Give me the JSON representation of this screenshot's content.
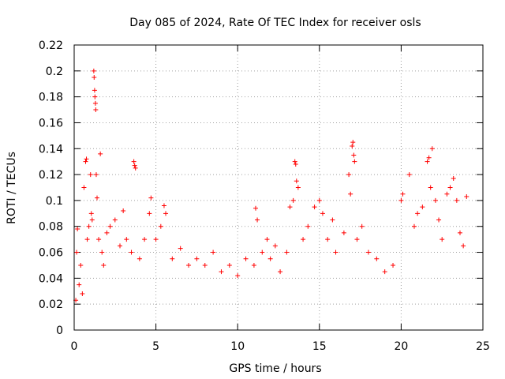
{
  "chart_data": {
    "type": "scatter",
    "title": "Day 085 of 2024, Rate Of TEC Index for receiver osls",
    "xlabel": "GPS time / hours",
    "ylabel": "ROTI / TECUs",
    "xlim": [
      0,
      25
    ],
    "ylim": [
      0,
      0.22
    ],
    "xticks": [
      0,
      5,
      10,
      15,
      20,
      25
    ],
    "xtick_labels": [
      "0",
      "5",
      "10",
      "15",
      "20",
      "25"
    ],
    "yticks": [
      0,
      0.02,
      0.04,
      0.06,
      0.08,
      0.1,
      0.12,
      0.14,
      0.16,
      0.18,
      0.2,
      0.22
    ],
    "ytick_labels": [
      "0",
      "0.02",
      "0.04",
      "0.06",
      "0.08",
      "0.1",
      "0.12",
      "0.14",
      "0.16",
      "0.18",
      "0.2",
      "0.22"
    ],
    "grid": true,
    "marker": "plus",
    "color": "#ff0000",
    "series": [
      {
        "name": "ROTI",
        "points": [
          [
            0.1,
            0.023
          ],
          [
            0.15,
            0.06
          ],
          [
            0.2,
            0.078
          ],
          [
            0.3,
            0.035
          ],
          [
            0.4,
            0.05
          ],
          [
            0.5,
            0.028
          ],
          [
            0.6,
            0.11
          ],
          [
            0.7,
            0.13
          ],
          [
            0.75,
            0.132
          ],
          [
            0.8,
            0.07
          ],
          [
            0.9,
            0.08
          ],
          [
            1.0,
            0.12
          ],
          [
            1.05,
            0.09
          ],
          [
            1.1,
            0.085
          ],
          [
            1.2,
            0.2
          ],
          [
            1.22,
            0.195
          ],
          [
            1.25,
            0.185
          ],
          [
            1.27,
            0.18
          ],
          [
            1.3,
            0.175
          ],
          [
            1.32,
            0.17
          ],
          [
            1.35,
            0.12
          ],
          [
            1.4,
            0.102
          ],
          [
            1.5,
            0.07
          ],
          [
            1.6,
            0.136
          ],
          [
            1.7,
            0.06
          ],
          [
            1.8,
            0.05
          ],
          [
            2.0,
            0.075
          ],
          [
            2.2,
            0.08
          ],
          [
            2.5,
            0.085
          ],
          [
            2.8,
            0.065
          ],
          [
            3.0,
            0.092
          ],
          [
            3.2,
            0.07
          ],
          [
            3.5,
            0.06
          ],
          [
            3.65,
            0.13
          ],
          [
            3.7,
            0.127
          ],
          [
            3.75,
            0.125
          ],
          [
            4.0,
            0.055
          ],
          [
            4.3,
            0.07
          ],
          [
            4.6,
            0.09
          ],
          [
            4.7,
            0.102
          ],
          [
            5.0,
            0.07
          ],
          [
            5.3,
            0.08
          ],
          [
            5.5,
            0.096
          ],
          [
            5.6,
            0.09
          ],
          [
            6.0,
            0.055
          ],
          [
            6.5,
            0.063
          ],
          [
            7.0,
            0.05
          ],
          [
            7.5,
            0.055
          ],
          [
            8.0,
            0.05
          ],
          [
            8.5,
            0.06
          ],
          [
            9.0,
            0.045
          ],
          [
            9.5,
            0.05
          ],
          [
            10.0,
            0.042
          ],
          [
            10.5,
            0.055
          ],
          [
            11.0,
            0.05
          ],
          [
            11.1,
            0.094
          ],
          [
            11.2,
            0.085
          ],
          [
            11.5,
            0.06
          ],
          [
            11.8,
            0.07
          ],
          [
            12.0,
            0.055
          ],
          [
            12.3,
            0.065
          ],
          [
            12.6,
            0.045
          ],
          [
            13.0,
            0.06
          ],
          [
            13.2,
            0.095
          ],
          [
            13.4,
            0.1
          ],
          [
            13.5,
            0.13
          ],
          [
            13.55,
            0.128
          ],
          [
            13.6,
            0.115
          ],
          [
            13.7,
            0.11
          ],
          [
            14.0,
            0.07
          ],
          [
            14.3,
            0.08
          ],
          [
            14.7,
            0.095
          ],
          [
            15.0,
            0.1
          ],
          [
            15.2,
            0.09
          ],
          [
            15.5,
            0.07
          ],
          [
            15.8,
            0.085
          ],
          [
            16.0,
            0.06
          ],
          [
            16.5,
            0.075
          ],
          [
            16.8,
            0.12
          ],
          [
            16.9,
            0.105
          ],
          [
            17.0,
            0.142
          ],
          [
            17.05,
            0.145
          ],
          [
            17.1,
            0.135
          ],
          [
            17.15,
            0.13
          ],
          [
            17.3,
            0.07
          ],
          [
            17.6,
            0.08
          ],
          [
            18.0,
            0.06
          ],
          [
            18.5,
            0.055
          ],
          [
            19.0,
            0.045
          ],
          [
            19.5,
            0.05
          ],
          [
            20.0,
            0.1
          ],
          [
            20.1,
            0.105
          ],
          [
            20.5,
            0.12
          ],
          [
            20.8,
            0.08
          ],
          [
            21.0,
            0.09
          ],
          [
            21.3,
            0.095
          ],
          [
            21.6,
            0.13
          ],
          [
            21.7,
            0.133
          ],
          [
            21.8,
            0.11
          ],
          [
            21.9,
            0.14
          ],
          [
            22.1,
            0.1
          ],
          [
            22.3,
            0.085
          ],
          [
            22.5,
            0.07
          ],
          [
            22.8,
            0.105
          ],
          [
            23.0,
            0.11
          ],
          [
            23.2,
            0.117
          ],
          [
            23.4,
            0.1
          ],
          [
            23.6,
            0.075
          ],
          [
            23.8,
            0.065
          ],
          [
            24.0,
            0.103
          ]
        ]
      }
    ]
  }
}
